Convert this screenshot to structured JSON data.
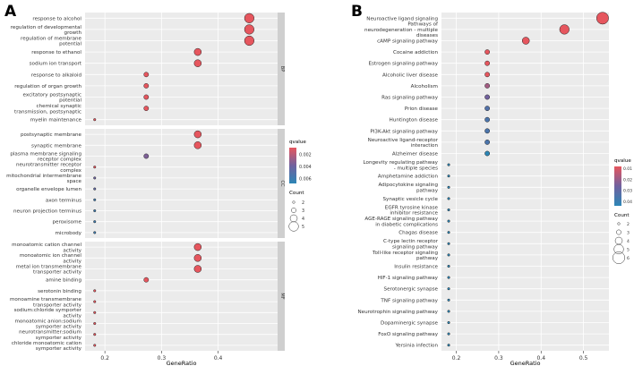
{
  "chart_data": [
    {
      "panel_label": "A",
      "type": "scatter",
      "xlabel": "GeneRatio",
      "ylabel": "",
      "xlim": [
        0.165,
        0.505
      ],
      "xticks": [
        0.2,
        0.3,
        0.4
      ],
      "tick_labels": [
        "0.2",
        "0.3",
        "0.4"
      ],
      "facets": [
        {
          "strip": "BP",
          "terms": [
            {
              "label": "response to alcohol",
              "x": 0.455,
              "count": 5,
              "qvalue": 0.0009
            },
            {
              "label": "regulation of developmental\ngrowth",
              "x": 0.455,
              "count": 5,
              "qvalue": 0.0009
            },
            {
              "label": "regulation of membrane\npotential",
              "x": 0.455,
              "count": 5,
              "qvalue": 0.0009
            },
            {
              "label": "response to ethanol",
              "x": 0.364,
              "count": 4,
              "qvalue": 0.0009
            },
            {
              "label": "sodium ion transport",
              "x": 0.364,
              "count": 4,
              "qvalue": 0.0009
            },
            {
              "label": "response to alkaloid",
              "x": 0.273,
              "count": 3,
              "qvalue": 0.0009
            },
            {
              "label": "regulation of organ growth",
              "x": 0.273,
              "count": 3,
              "qvalue": 0.0009
            },
            {
              "label": "excitatory postsynaptic\npotential",
              "x": 0.273,
              "count": 3,
              "qvalue": 0.0009
            },
            {
              "label": "chemical synaptic\ntransmission, postsynaptic",
              "x": 0.273,
              "count": 3,
              "qvalue": 0.0009
            },
            {
              "label": "myelin maintenance",
              "x": 0.182,
              "count": 2,
              "qvalue": 0.0009
            }
          ]
        },
        {
          "strip": "CC",
          "terms": [
            {
              "label": "postsynaptic membrane",
              "x": 0.364,
              "count": 4,
              "qvalue": 0.0009
            },
            {
              "label": "synaptic membrane",
              "x": 0.364,
              "count": 4,
              "qvalue": 0.0009
            },
            {
              "label": "plasma membrane signaling\nreceptor complex",
              "x": 0.273,
              "count": 3,
              "qvalue": 0.0035
            },
            {
              "label": "neurotransmitter receptor\ncomplex",
              "x": 0.182,
              "count": 2,
              "qvalue": 0.0009
            },
            {
              "label": "mitochondrial intermembrane\nspace",
              "x": 0.182,
              "count": 2,
              "qvalue": 0.004
            },
            {
              "label": "organelle envelope lumen",
              "x": 0.182,
              "count": 2,
              "qvalue": 0.0045
            },
            {
              "label": "axon terminus",
              "x": 0.182,
              "count": 2,
              "qvalue": 0.006
            },
            {
              "label": "neuron projection terminus",
              "x": 0.182,
              "count": 2,
              "qvalue": 0.006
            },
            {
              "label": "peroxisome",
              "x": 0.182,
              "count": 2,
              "qvalue": 0.006
            },
            {
              "label": "microbody",
              "x": 0.182,
              "count": 2,
              "qvalue": 0.006
            }
          ]
        },
        {
          "strip": "MF",
          "terms": [
            {
              "label": "monoatomic cation channel\nactivity",
              "x": 0.364,
              "count": 4,
              "qvalue": 0.0009
            },
            {
              "label": "monoatomic ion channel\nactivity",
              "x": 0.364,
              "count": 4,
              "qvalue": 0.0009
            },
            {
              "label": "metal ion transmembrane\ntransporter activity",
              "x": 0.364,
              "count": 4,
              "qvalue": 0.0009
            },
            {
              "label": "amine binding",
              "x": 0.273,
              "count": 3,
              "qvalue": 0.0009
            },
            {
              "label": "serotonin binding",
              "x": 0.182,
              "count": 2,
              "qvalue": 0.0009
            },
            {
              "label": "monoamine transmembrane\ntransporter activity",
              "x": 0.182,
              "count": 2,
              "qvalue": 0.0009
            },
            {
              "label": "sodium:chloride symporter\nactivity",
              "x": 0.182,
              "count": 2,
              "qvalue": 0.0009
            },
            {
              "label": "monoatomic anion:sodium\nsymporter activity",
              "x": 0.182,
              "count": 2,
              "qvalue": 0.0009
            },
            {
              "label": "neurotransmitter:sodium\nsymporter activity",
              "x": 0.182,
              "count": 2,
              "qvalue": 0.0009
            },
            {
              "label": "chloride monoatomic cation\nsymporter activity",
              "x": 0.182,
              "count": 2,
              "qvalue": 0.0009
            }
          ]
        }
      ],
      "legend": {
        "color_title": "qvalue",
        "color_ticks": [
          0.002,
          0.004,
          0.006
        ],
        "color_tick_labels": [
          "0.002",
          "0.004",
          "0.006"
        ],
        "color_range": [
          0.0009,
          0.0068
        ],
        "size_title": "Count",
        "size_values": [
          2,
          3,
          4,
          5
        ]
      }
    },
    {
      "panel_label": "B",
      "type": "scatter",
      "xlabel": "GeneRatio",
      "ylabel": "",
      "xlim": [
        0.165,
        0.56
      ],
      "xticks": [
        0.2,
        0.3,
        0.4,
        0.5
      ],
      "tick_labels": [
        "0.2",
        "0.3",
        "0.4",
        "0.5"
      ],
      "terms": [
        {
          "label": "Neuroactive ligand signaling",
          "x": 0.545,
          "count": 6,
          "qvalue": 0.0085
        },
        {
          "label": "Pathways of\nneurodegeneration - multiple\ndiseases",
          "x": 0.455,
          "count": 5,
          "qvalue": 0.0085
        },
        {
          "label": "cAMP signaling pathway",
          "x": 0.364,
          "count": 4,
          "qvalue": 0.0085
        },
        {
          "label": "Cocaine addiction",
          "x": 0.273,
          "count": 3,
          "qvalue": 0.0085
        },
        {
          "label": "Estrogen signaling pathway",
          "x": 0.273,
          "count": 3,
          "qvalue": 0.0085
        },
        {
          "label": "Alcoholic liver disease",
          "x": 0.273,
          "count": 3,
          "qvalue": 0.0085
        },
        {
          "label": "Alcoholism",
          "x": 0.273,
          "count": 3,
          "qvalue": 0.0185
        },
        {
          "label": "Ras signaling pathway",
          "x": 0.273,
          "count": 3,
          "qvalue": 0.026
        },
        {
          "label": "Prion disease",
          "x": 0.273,
          "count": 3,
          "qvalue": 0.034
        },
        {
          "label": "Huntington disease",
          "x": 0.273,
          "count": 3,
          "qvalue": 0.036
        },
        {
          "label": "PI3K-Akt signaling pathway",
          "x": 0.273,
          "count": 3,
          "qvalue": 0.036
        },
        {
          "label": "Neuroactive ligand-receptor\ninteraction",
          "x": 0.273,
          "count": 3,
          "qvalue": 0.036
        },
        {
          "label": "Alzheimer disease",
          "x": 0.273,
          "count": 3,
          "qvalue": 0.044
        },
        {
          "label": "Longevity regulating pathway\n- multiple species",
          "x": 0.182,
          "count": 2,
          "qvalue": 0.044
        },
        {
          "label": "Amphetamine addiction",
          "x": 0.182,
          "count": 2,
          "qvalue": 0.044
        },
        {
          "label": "Adipocytokine signaling\npathway",
          "x": 0.182,
          "count": 2,
          "qvalue": 0.044
        },
        {
          "label": "Synaptic vesicle cycle",
          "x": 0.182,
          "count": 2,
          "qvalue": 0.044
        },
        {
          "label": "EGFR tyrosine kinase\ninhibitor resistance",
          "x": 0.182,
          "count": 2,
          "qvalue": 0.044
        },
        {
          "label": "AGE-RAGE signaling pathway\nin diabetic complications",
          "x": 0.182,
          "count": 2,
          "qvalue": 0.044
        },
        {
          "label": "Chagas disease",
          "x": 0.182,
          "count": 2,
          "qvalue": 0.044
        },
        {
          "label": "C-type lectin receptor\nsignaling pathway",
          "x": 0.182,
          "count": 2,
          "qvalue": 0.044
        },
        {
          "label": "Toll-like receptor signaling\npathway",
          "x": 0.182,
          "count": 2,
          "qvalue": 0.044
        },
        {
          "label": "Insulin resistance",
          "x": 0.182,
          "count": 2,
          "qvalue": 0.044
        },
        {
          "label": "HIF-1 signaling pathway",
          "x": 0.182,
          "count": 2,
          "qvalue": 0.044
        },
        {
          "label": "Serotonergic synapse",
          "x": 0.182,
          "count": 2,
          "qvalue": 0.044
        },
        {
          "label": "TNF signaling pathway",
          "x": 0.182,
          "count": 2,
          "qvalue": 0.044
        },
        {
          "label": "Neurotrophin signaling pathway",
          "x": 0.182,
          "count": 2,
          "qvalue": 0.044
        },
        {
          "label": "Dopaminergic synapse",
          "x": 0.182,
          "count": 2,
          "qvalue": 0.044
        },
        {
          "label": "FoxO signaling pathway",
          "x": 0.182,
          "count": 2,
          "qvalue": 0.044
        },
        {
          "label": "Yersinia infection",
          "x": 0.182,
          "count": 2,
          "qvalue": 0.044
        }
      ],
      "legend": {
        "color_title": "qvalue",
        "color_ticks": [
          0.01,
          0.02,
          0.03,
          0.04
        ],
        "color_tick_labels": [
          "0.01",
          "0.02",
          "0.03",
          "0.04"
        ],
        "color_range": [
          0.0085,
          0.044
        ],
        "size_title": "Count",
        "size_values": [
          2,
          3,
          4,
          5,
          6
        ]
      }
    }
  ],
  "colors": {
    "low_qvalue": "#e6565e",
    "high_qvalue": "#2c86b6",
    "panel_bg": "#ebebeb",
    "grid": "#ffffff",
    "strip_bg": "#cfcfcf"
  }
}
